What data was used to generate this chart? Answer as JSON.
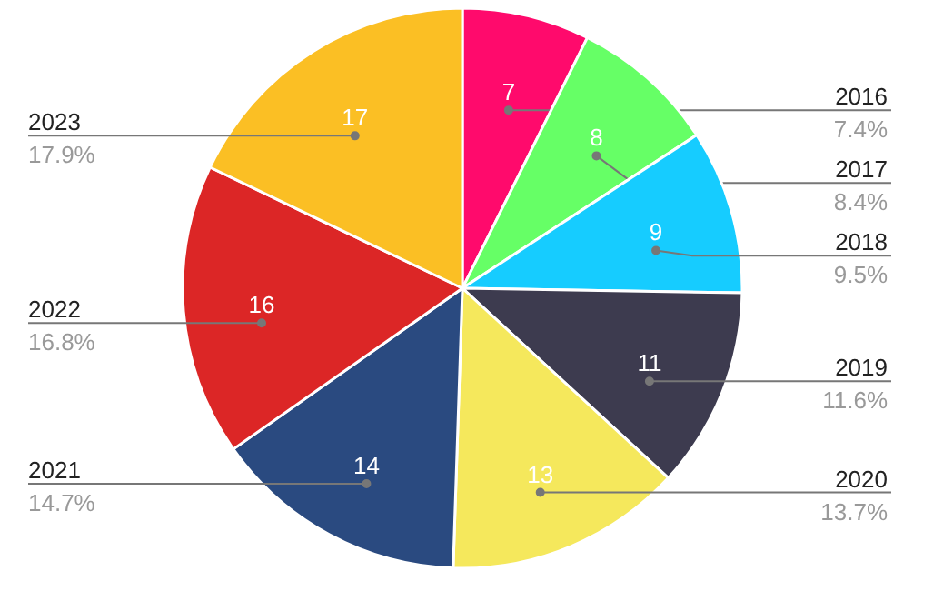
{
  "chart_data": {
    "type": "pie",
    "categories": [
      "2016",
      "2017",
      "2018",
      "2019",
      "2020",
      "2021",
      "2022",
      "2023"
    ],
    "values": [
      7,
      8,
      9,
      11,
      13,
      14,
      16,
      17
    ],
    "colors": [
      "#ff0a6c",
      "#66ff66",
      "#16ccff",
      "#3d3b4f",
      "#f5e85c",
      "#2a4a80",
      "#dc2626",
      "#fbbf24"
    ],
    "data_labels": true,
    "annotations": [
      "7.4%",
      "8.4%",
      "9.5%",
      "11.6%",
      "13.7%",
      "14.7%",
      "16.8%",
      "17.9%"
    ]
  }
}
